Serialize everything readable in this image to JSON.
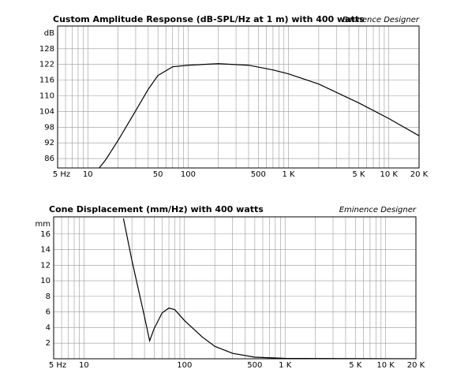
{
  "chart_data": [
    {
      "type": "line",
      "title": "Custom Amplitude Response (dB-SPL/Hz at 1 m) with 400 watts",
      "subtitle": "Eminence Designer",
      "y_unit": "dB",
      "x_scale": "log",
      "color": "#000000",
      "x": [
        13,
        15,
        20,
        30,
        40,
        50,
        70,
        100,
        200,
        400,
        700,
        1000,
        2000,
        5000,
        10000,
        20000
      ],
      "values": [
        82.4,
        85.4,
        92.9,
        104.3,
        112.5,
        117.8,
        121.1,
        121.7,
        122.3,
        121.7,
        119.9,
        118.4,
        114.5,
        107.3,
        101.3,
        94.7
      ],
      "xlim": [
        5,
        20000
      ],
      "xticks": [
        {
          "value": 5,
          "label": "5 Hz"
        },
        10,
        50,
        100,
        500,
        {
          "value": 1000,
          "label": "1 K"
        },
        {
          "value": 5000,
          "label": "5 K"
        },
        {
          "value": 10000,
          "label": "10 K"
        },
        {
          "value": 20000,
          "label": "20 K"
        }
      ],
      "xgrid_minor": [
        6,
        7,
        8,
        9,
        20,
        30,
        40,
        60,
        70,
        80,
        90,
        200,
        300,
        400,
        600,
        700,
        800,
        900,
        2000,
        3000,
        4000,
        6000,
        7000,
        8000,
        9000
      ],
      "ylim": [
        82.4,
        136.7
      ],
      "yticks": [
        86,
        92,
        98,
        104,
        110,
        116,
        122,
        128
      ],
      "grid": true
    },
    {
      "type": "line",
      "title": "Cone Displacement (mm/Hz) with 400 watts",
      "subtitle": "Eminence Designer",
      "y_unit": "mm",
      "x_scale": "log",
      "color": "#000000",
      "x": [
        24.7,
        30,
        40,
        45,
        50,
        60,
        70,
        80,
        100,
        150,
        200,
        300,
        500,
        1000,
        20000
      ],
      "values": [
        18,
        12.6,
        5.4,
        2.3,
        3.9,
        5.9,
        6.5,
        6.3,
        4.9,
        2.8,
        1.6,
        0.7,
        0.2,
        0.05,
        0
      ],
      "xlim": [
        5,
        20000
      ],
      "xticks": [
        {
          "value": 5,
          "label": "5 Hz"
        },
        10,
        100,
        500,
        {
          "value": 1000,
          "label": "1 K"
        },
        {
          "value": 5000,
          "label": "5 K"
        },
        {
          "value": 10000,
          "label": "10 K"
        },
        {
          "value": 20000,
          "label": "20 K"
        }
      ],
      "xgrid_minor": [
        6,
        7,
        8,
        9,
        20,
        30,
        40,
        50,
        60,
        70,
        80,
        90,
        200,
        300,
        400,
        600,
        700,
        800,
        900,
        2000,
        3000,
        4000,
        6000,
        7000,
        8000,
        9000
      ],
      "ylim": [
        0,
        18.2
      ],
      "yticks": [
        2,
        4,
        6,
        8,
        10,
        12,
        14,
        16
      ],
      "grid": true
    }
  ]
}
